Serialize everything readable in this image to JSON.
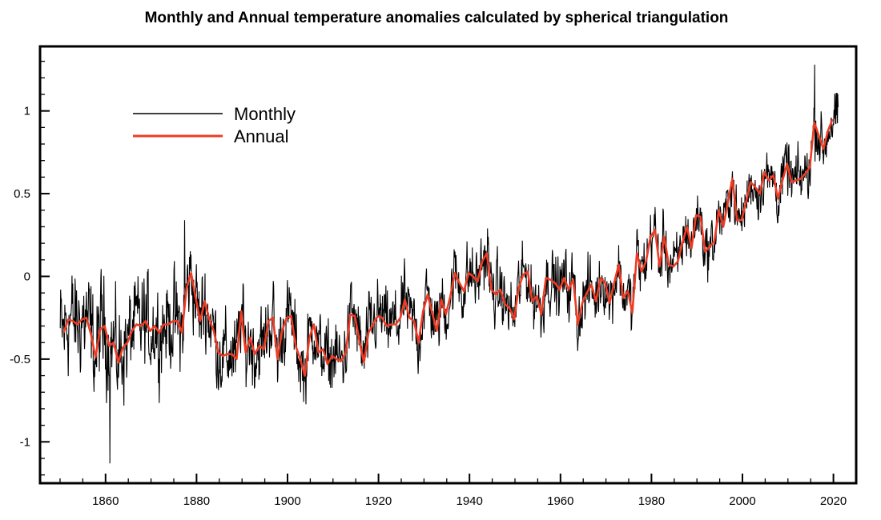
{
  "chart_data": {
    "type": "line",
    "title": "Monthly and Annual temperature anomalies calculated by spherical triangulation",
    "xlabel": "",
    "ylabel": "",
    "xlim": [
      1845.6,
      2025.0
    ],
    "ylim": [
      -1.25,
      1.39
    ],
    "grid": false,
    "legend_position": "top-left",
    "x_ticks": [
      1860,
      1880,
      1900,
      1920,
      1940,
      1960,
      1980,
      2000,
      2020
    ],
    "x_tick_labels": [
      "1860",
      "1880",
      "1900",
      "1920",
      "1940",
      "1960",
      "1980",
      "2000",
      "2020"
    ],
    "x_minor_step": 5,
    "y_ticks": [
      -1,
      -0.5,
      0,
      0.5,
      1
    ],
    "y_tick_labels": [
      "-1",
      "-0.5",
      "0",
      "0.5",
      "1"
    ],
    "y_minor_step": 0.1,
    "series": [
      {
        "name": "Monthly",
        "color": "#000000",
        "start_year": 1850,
        "end_year": 2021,
        "description": "monthly anomalies scatter around the annual mean with an amplitude given per year",
        "amplitude_by_year": {
          "x": [
            1850,
            1880,
            1900,
            1920,
            1950,
            1980,
            2000,
            2021
          ],
          "amp": [
            0.38,
            0.3,
            0.26,
            0.24,
            0.22,
            0.2,
            0.18,
            0.2
          ]
        },
        "notable_points": [
          {
            "x": 1861.0,
            "y": -1.13
          },
          {
            "x": 1877.4,
            "y": 0.34
          },
          {
            "x": 1944.0,
            "y": 0.29
          },
          {
            "x": 2015.9,
            "y": 1.28
          }
        ]
      },
      {
        "name": "Annual",
        "color": "#ee3b24",
        "x_start": 1850.8,
        "values": [
          -0.34,
          -0.26,
          -0.27,
          -0.29,
          -0.26,
          -0.25,
          -0.35,
          -0.49,
          -0.32,
          -0.3,
          -0.42,
          -0.4,
          -0.52,
          -0.43,
          -0.4,
          -0.33,
          -0.29,
          -0.3,
          -0.27,
          -0.33,
          -0.3,
          -0.34,
          -0.29,
          -0.29,
          -0.27,
          -0.27,
          -0.34,
          -0.07,
          0.02,
          -0.13,
          -0.27,
          -0.15,
          -0.26,
          -0.33,
          -0.46,
          -0.48,
          -0.47,
          -0.47,
          -0.5,
          -0.21,
          -0.46,
          -0.37,
          -0.47,
          -0.42,
          -0.44,
          -0.27,
          -0.25,
          -0.5,
          -0.33,
          -0.25,
          -0.24,
          -0.42,
          -0.5,
          -0.6,
          -0.37,
          -0.29,
          -0.46,
          -0.44,
          -0.53,
          -0.48,
          -0.5,
          -0.51,
          -0.46,
          -0.23,
          -0.24,
          -0.39,
          -0.52,
          -0.34,
          -0.29,
          -0.24,
          -0.25,
          -0.3,
          -0.29,
          -0.29,
          -0.25,
          -0.14,
          -0.25,
          -0.27,
          -0.4,
          -0.21,
          -0.11,
          -0.22,
          -0.33,
          -0.14,
          -0.23,
          -0.12,
          0.02,
          -0.04,
          -0.09,
          0.02,
          0.0,
          -0.03,
          0.09,
          0.14,
          -0.08,
          -0.11,
          -0.08,
          -0.17,
          -0.19,
          -0.26,
          -0.07,
          0.01,
          0.03,
          -0.15,
          -0.12,
          -0.23,
          -0.01,
          -0.02,
          -0.04,
          -0.08,
          -0.01,
          -0.08,
          -0.02,
          -0.29,
          -0.16,
          -0.1,
          -0.05,
          -0.15,
          -0.01,
          -0.04,
          -0.16,
          -0.04,
          0.07,
          -0.13,
          -0.09,
          -0.22,
          0.14,
          0.03,
          0.09,
          0.24,
          0.28,
          0.06,
          0.24,
          0.07,
          0.06,
          0.09,
          0.2,
          0.3,
          0.17,
          0.37,
          0.36,
          0.15,
          0.18,
          0.21,
          0.4,
          0.3,
          0.45,
          0.59,
          0.34,
          0.34,
          0.45,
          0.57,
          0.54,
          0.5,
          0.63,
          0.58,
          0.61,
          0.47,
          0.58,
          0.68,
          0.57,
          0.58,
          0.59,
          0.62,
          0.66,
          0.93,
          0.85,
          0.77,
          0.88,
          0.95
        ]
      }
    ]
  }
}
